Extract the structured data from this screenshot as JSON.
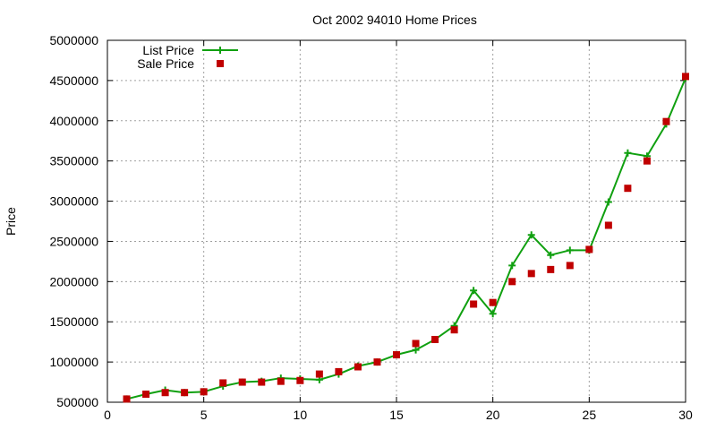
{
  "chart_data": {
    "type": "line",
    "title": "Oct 2002 94010 Home Prices",
    "xlabel": "",
    "ylabel": "Price",
    "xlim": [
      0,
      30
    ],
    "ylim": [
      500000,
      5000000
    ],
    "x_ticks": [
      "0",
      "5",
      "10",
      "15",
      "20",
      "25",
      "30"
    ],
    "y_ticks": [
      "500000",
      "1000000",
      "1500000",
      "2000000",
      "2500000",
      "3000000",
      "3500000",
      "4000000",
      "4500000",
      "5000000"
    ],
    "grid": true,
    "legend_position": "top-left",
    "series": [
      {
        "name": "List Price",
        "style": "line with plus markers",
        "color": "#10a010",
        "x": [
          1,
          2,
          3,
          4,
          5,
          6,
          7,
          8,
          9,
          10,
          11,
          12,
          13,
          14,
          15,
          16,
          17,
          18,
          19,
          20,
          21,
          22,
          23,
          24,
          25,
          26,
          27,
          28,
          29,
          30
        ],
        "values": [
          540000,
          600000,
          650000,
          620000,
          630000,
          700000,
          750000,
          760000,
          800000,
          790000,
          780000,
          850000,
          950000,
          1000000,
          1090000,
          1150000,
          1280000,
          1450000,
          1890000,
          1600000,
          2200000,
          2580000,
          2330000,
          2390000,
          2390000,
          2990000,
          3600000,
          3560000,
          3960000,
          4530000
        ]
      },
      {
        "name": "Sale Price",
        "style": "square markers",
        "color": "#c00000",
        "x": [
          1,
          2,
          3,
          4,
          5,
          6,
          7,
          8,
          9,
          10,
          11,
          12,
          13,
          14,
          15,
          16,
          17,
          18,
          19,
          20,
          21,
          22,
          23,
          24,
          25,
          26,
          27,
          28,
          29,
          30
        ],
        "values": [
          540000,
          600000,
          620000,
          620000,
          630000,
          740000,
          750000,
          750000,
          760000,
          770000,
          850000,
          880000,
          940000,
          1000000,
          1090000,
          1230000,
          1280000,
          1400000,
          1720000,
          1740000,
          2000000,
          2100000,
          2150000,
          2200000,
          2400000,
          2700000,
          3160000,
          3500000,
          3990000,
          4550000
        ]
      }
    ]
  }
}
